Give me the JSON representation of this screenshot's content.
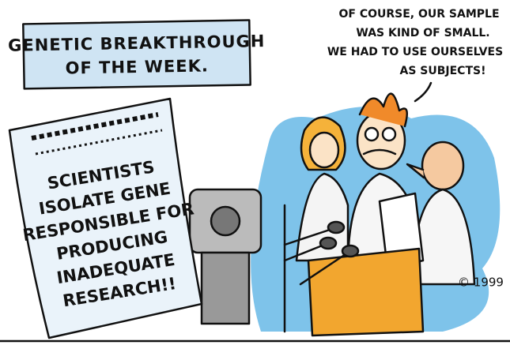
{
  "caption": {
    "lines": [
      "GENETIC BREAKTHROUGH",
      "OF THE WEEK."
    ]
  },
  "speech": {
    "lines": [
      "OF COURSE, OUR SAMPLE",
      "WAS KIND OF SMALL.",
      "WE HAD TO USE OURSELVES",
      "AS SUBJECTS!"
    ]
  },
  "newspaper": {
    "headline": [
      "SCIENTISTS",
      "ISOLATE GENE",
      "RESPONSIBLE FOR",
      "PRODUCING",
      "INADEQUATE",
      "RESEARCH!!"
    ]
  },
  "copyright": "© 1999"
}
